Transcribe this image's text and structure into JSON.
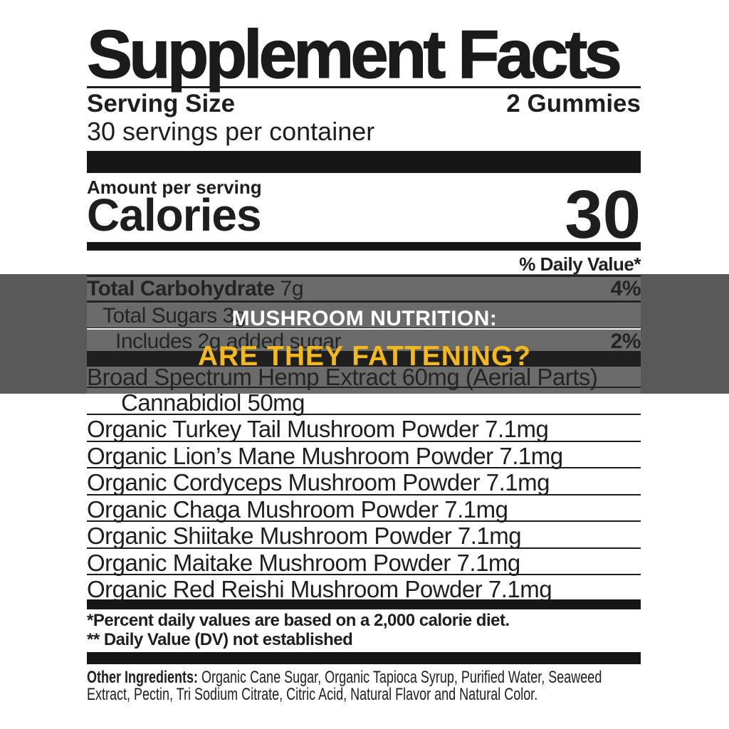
{
  "label": {
    "title": "Supplement Facts",
    "serving_size_label": "Serving Size",
    "serving_size_value": "2 Gummies",
    "servings_per_container": "30 servings per container",
    "amount_per_serving": "Amount per serving",
    "calories_label": "Calories",
    "calories_value": "30",
    "daily_value_header": "% Daily Value*",
    "nutrients": [
      {
        "name": "Total Carbohydrate",
        "amount": "7g",
        "daily_value": "4%"
      },
      {
        "name": "Total Sugars 3g",
        "daily_value": ""
      },
      {
        "name": "Includes 2g added sugar",
        "daily_value": "2%"
      }
    ],
    "actives": [
      "Broad Spectrum Hemp Extract 60mg (Aerial Parts)",
      "Cannabidiol 50mg",
      "Organic Turkey Tail Mushroom Powder 7.1mg",
      "Organic Lion’s Mane Mushroom Powder 7.1mg",
      "Organic Cordyceps Mushroom Powder 7.1mg",
      "Organic Chaga Mushroom Powder 7.1mg",
      "Organic Shiitake Mushroom Powder 7.1mg",
      "Organic Maitake Mushroom Powder 7.1mg",
      "Organic Red Reishi Mushroom Powder 7.1mg"
    ],
    "footnote1": "*Percent daily values are based on a 2,000 calorie diet.",
    "footnote2": "** Daily Value (DV) not established",
    "other_ingredients_label": "Other Ingredients:",
    "other_ingredients_line1": " Organic Cane Sugar, Organic Tapioca Syrup, Purified Water, Seaweed",
    "other_ingredients_line2": "Extract, Pectin, Tri Sodium Citrate, Citric Acid, Natural Flavor and Natural Color."
  },
  "banner": {
    "title": "MUSHROOM NUTRITION:",
    "subtitle": "ARE THEY FATTENING?",
    "title_color": "#ffffff",
    "subtitle_color": "#f4b81f",
    "overlay_color": "rgba(0,0,0,0.65)"
  }
}
